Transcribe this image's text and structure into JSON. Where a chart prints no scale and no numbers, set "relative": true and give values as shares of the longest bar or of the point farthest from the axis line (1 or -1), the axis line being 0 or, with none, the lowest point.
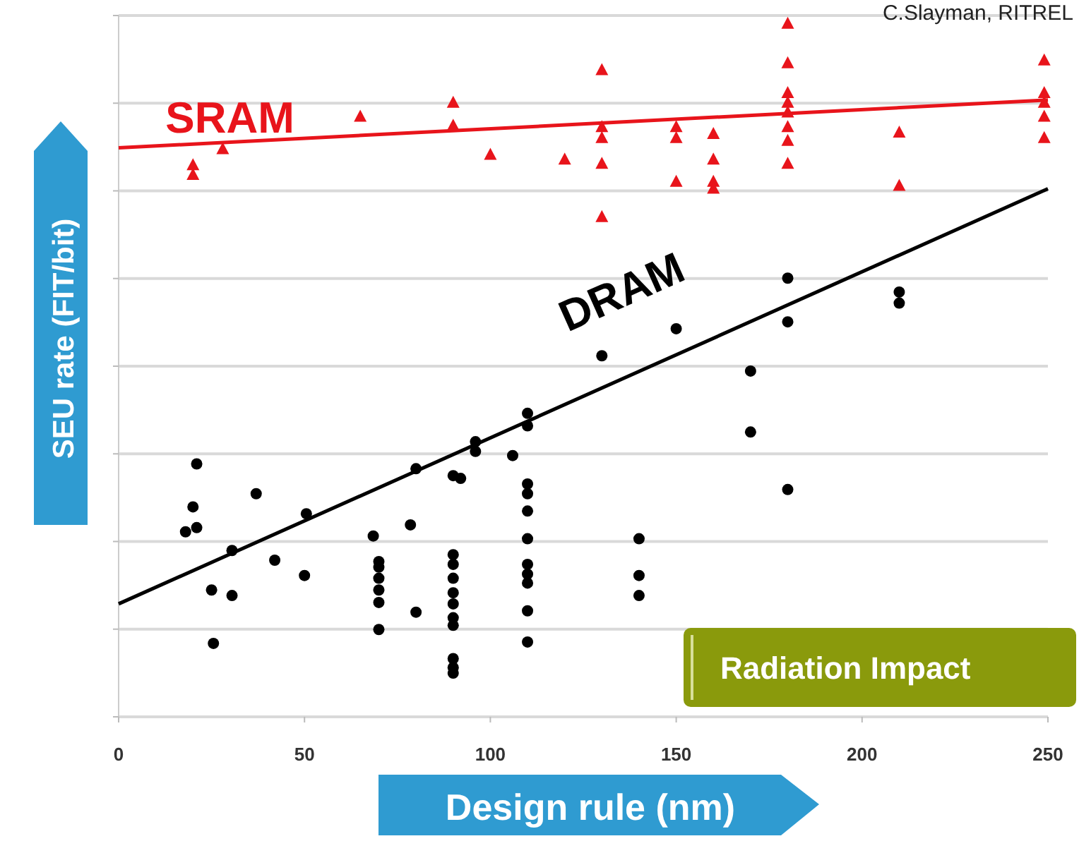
{
  "chart_data": {
    "type": "scatter",
    "xlabel": "Design rule (nm)",
    "ylabel": "SEU rate (FIT/bit)",
    "relative": true,
    "xlim": [
      0,
      250
    ],
    "xticks": [
      0,
      50,
      100,
      150,
      200,
      250
    ],
    "grid": "y",
    "tick_labels": "x",
    "annotations": [
      "C.Slayman, RITREL",
      "Radiation Impact"
    ],
    "series": [
      {
        "color": "#e8141b",
        "marker": "triangle",
        "x": [
          20,
          20,
          28,
          65,
          90,
          90,
          100,
          120,
          130,
          130,
          130,
          130,
          130,
          150,
          150,
          150,
          160,
          160,
          160,
          160,
          180,
          180,
          180,
          180,
          180,
          180,
          180,
          180,
          210,
          210,
          249,
          249,
          249,
          249,
          249
        ],
        "values": [
          0.796,
          0.782,
          0.819,
          0.866,
          0.886,
          0.853,
          0.811,
          0.804,
          0.933,
          0.851,
          0.835,
          0.798,
          0.721,
          0.851,
          0.835,
          0.772,
          0.841,
          0.804,
          0.772,
          0.762,
          1.0,
          0.943,
          0.9,
          0.886,
          0.872,
          0.851,
          0.831,
          0.798,
          0.843,
          0.766,
          0.947,
          0.9,
          0.886,
          0.866,
          0.835
        ]
      },
      {
        "type": "line",
        "name": "SRAM",
        "color": "#e8141b",
        "x": [
          0,
          250
        ],
        "values": [
          0.821,
          0.89
        ]
      },
      {
        "color": "#000000",
        "marker": "circle",
        "x": [
          21,
          20,
          18,
          21,
          37,
          50.5,
          30.5,
          42,
          50,
          25,
          30.5,
          25.5,
          68.5,
          70,
          70,
          70,
          70,
          70,
          70,
          78.5,
          80,
          80,
          90,
          92,
          90,
          90,
          90,
          90,
          90,
          90,
          90,
          90,
          90,
          90,
          96,
          96,
          106,
          110,
          110,
          110,
          110,
          110,
          110,
          110,
          110,
          110,
          110,
          110,
          130,
          140,
          140,
          140,
          150,
          170,
          170,
          180,
          180,
          180,
          210,
          210
        ],
        "values": [
          0.365,
          0.303,
          0.267,
          0.273,
          0.322,
          0.293,
          0.24,
          0.226,
          0.204,
          0.183,
          0.175,
          0.106,
          0.261,
          0.224,
          0.216,
          0.2,
          0.183,
          0.165,
          0.126,
          0.277,
          0.358,
          0.151,
          0.348,
          0.344,
          0.234,
          0.22,
          0.2,
          0.179,
          0.163,
          0.143,
          0.132,
          0.084,
          0.071,
          0.063,
          0.397,
          0.383,
          0.377,
          0.438,
          0.42,
          0.336,
          0.322,
          0.297,
          0.257,
          0.22,
          0.206,
          0.193,
          0.153,
          0.108,
          0.521,
          0.257,
          0.204,
          0.175,
          0.56,
          0.499,
          0.411,
          0.633,
          0.57,
          0.328,
          0.613,
          0.597
        ]
      },
      {
        "type": "line",
        "name": "DRAM",
        "color": "#000000",
        "x": [
          0,
          250
        ],
        "values": [
          0.163,
          0.762
        ]
      }
    ]
  }
}
